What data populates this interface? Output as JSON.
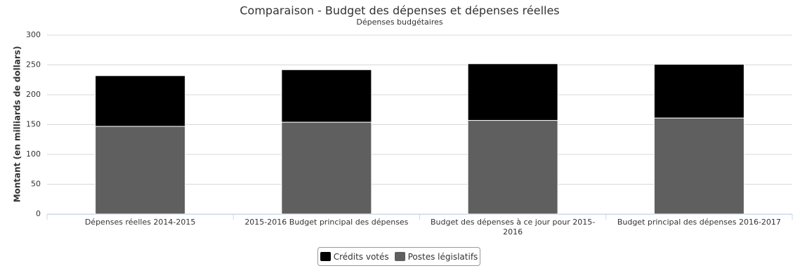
{
  "chart_data": {
    "type": "stacked_bar",
    "title": "Comparaison - Budget des dépenses et dépenses réelles",
    "subtitle": "Dépenses budgétaires",
    "y_label": "Montant (en milliards de dollars)",
    "categories": [
      "Dépenses réelles 2014-2015",
      "2015-2016 Budget principal des dépenses",
      "Budget des dépenses à ce jour pour 2015-2016",
      "Budget principal des dépenses 2016-2017"
    ],
    "series": [
      {
        "name": "Crédits votés",
        "color": "#000000",
        "values": [
          85,
          88,
          95,
          90
        ]
      },
      {
        "name": "Postes législatifs",
        "color": "#5f5f5f",
        "values": [
          147,
          154,
          157,
          161
        ]
      }
    ],
    "stack_order": [
      1,
      0
    ],
    "ylim": [
      0,
      300
    ],
    "yticks": [
      0,
      50,
      100,
      150,
      200,
      250,
      300
    ],
    "grid": true
  }
}
